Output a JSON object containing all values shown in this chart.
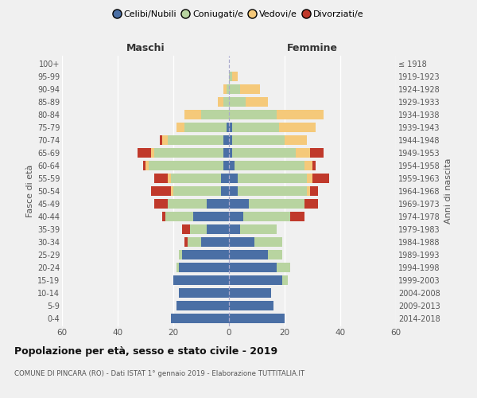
{
  "age_groups": [
    "0-4",
    "5-9",
    "10-14",
    "15-19",
    "20-24",
    "25-29",
    "30-34",
    "35-39",
    "40-44",
    "45-49",
    "50-54",
    "55-59",
    "60-64",
    "65-69",
    "70-74",
    "75-79",
    "80-84",
    "85-89",
    "90-94",
    "95-99",
    "100+"
  ],
  "birth_years": [
    "2014-2018",
    "2009-2013",
    "2004-2008",
    "1999-2003",
    "1994-1998",
    "1989-1993",
    "1984-1988",
    "1979-1983",
    "1974-1978",
    "1969-1973",
    "1964-1968",
    "1959-1963",
    "1954-1958",
    "1949-1953",
    "1944-1948",
    "1939-1943",
    "1934-1938",
    "1929-1933",
    "1924-1928",
    "1919-1923",
    "≤ 1918"
  ],
  "males": {
    "celibi": [
      21,
      19,
      18,
      20,
      18,
      17,
      10,
      8,
      13,
      8,
      3,
      3,
      2,
      2,
      2,
      1,
      0,
      0,
      0,
      0,
      0
    ],
    "coniugati": [
      0,
      0,
      0,
      0,
      1,
      1,
      5,
      6,
      10,
      14,
      17,
      18,
      27,
      25,
      20,
      15,
      10,
      2,
      1,
      0,
      0
    ],
    "vedovi": [
      0,
      0,
      0,
      0,
      0,
      0,
      0,
      0,
      0,
      0,
      1,
      1,
      1,
      1,
      2,
      3,
      6,
      2,
      1,
      0,
      0
    ],
    "divorziati": [
      0,
      0,
      0,
      0,
      0,
      0,
      1,
      3,
      1,
      5,
      7,
      5,
      1,
      5,
      1,
      0,
      0,
      0,
      0,
      0,
      0
    ]
  },
  "females": {
    "nubili": [
      20,
      16,
      15,
      19,
      17,
      14,
      9,
      4,
      5,
      7,
      3,
      3,
      2,
      1,
      1,
      1,
      0,
      0,
      0,
      0,
      0
    ],
    "coniugate": [
      0,
      0,
      0,
      2,
      5,
      5,
      10,
      13,
      17,
      20,
      25,
      25,
      25,
      23,
      19,
      17,
      17,
      6,
      4,
      1,
      0
    ],
    "vedove": [
      0,
      0,
      0,
      0,
      0,
      0,
      0,
      0,
      0,
      0,
      1,
      2,
      3,
      5,
      8,
      13,
      17,
      8,
      7,
      2,
      0
    ],
    "divorziate": [
      0,
      0,
      0,
      0,
      0,
      0,
      0,
      0,
      5,
      5,
      3,
      6,
      1,
      5,
      0,
      0,
      0,
      0,
      0,
      0,
      0
    ]
  },
  "colors": {
    "celibi": "#4a6fa5",
    "coniugati": "#b8d4a0",
    "vedovi": "#f5c97a",
    "divorziati": "#c0392b"
  },
  "legend_labels": [
    "Celibi/Nubili",
    "Coniugati/e",
    "Vedovi/e",
    "Divorziati/e"
  ],
  "title": "Popolazione per età, sesso e stato civile - 2019",
  "subtitle": "COMUNE DI PINCARA (RO) - Dati ISTAT 1° gennaio 2019 - Elaborazione TUTTITALIA.IT",
  "xlabel_left": "Maschi",
  "xlabel_right": "Femmine",
  "ylabel_left": "Fasce di età",
  "ylabel_right": "Anni di nascita",
  "xlim": 60
}
